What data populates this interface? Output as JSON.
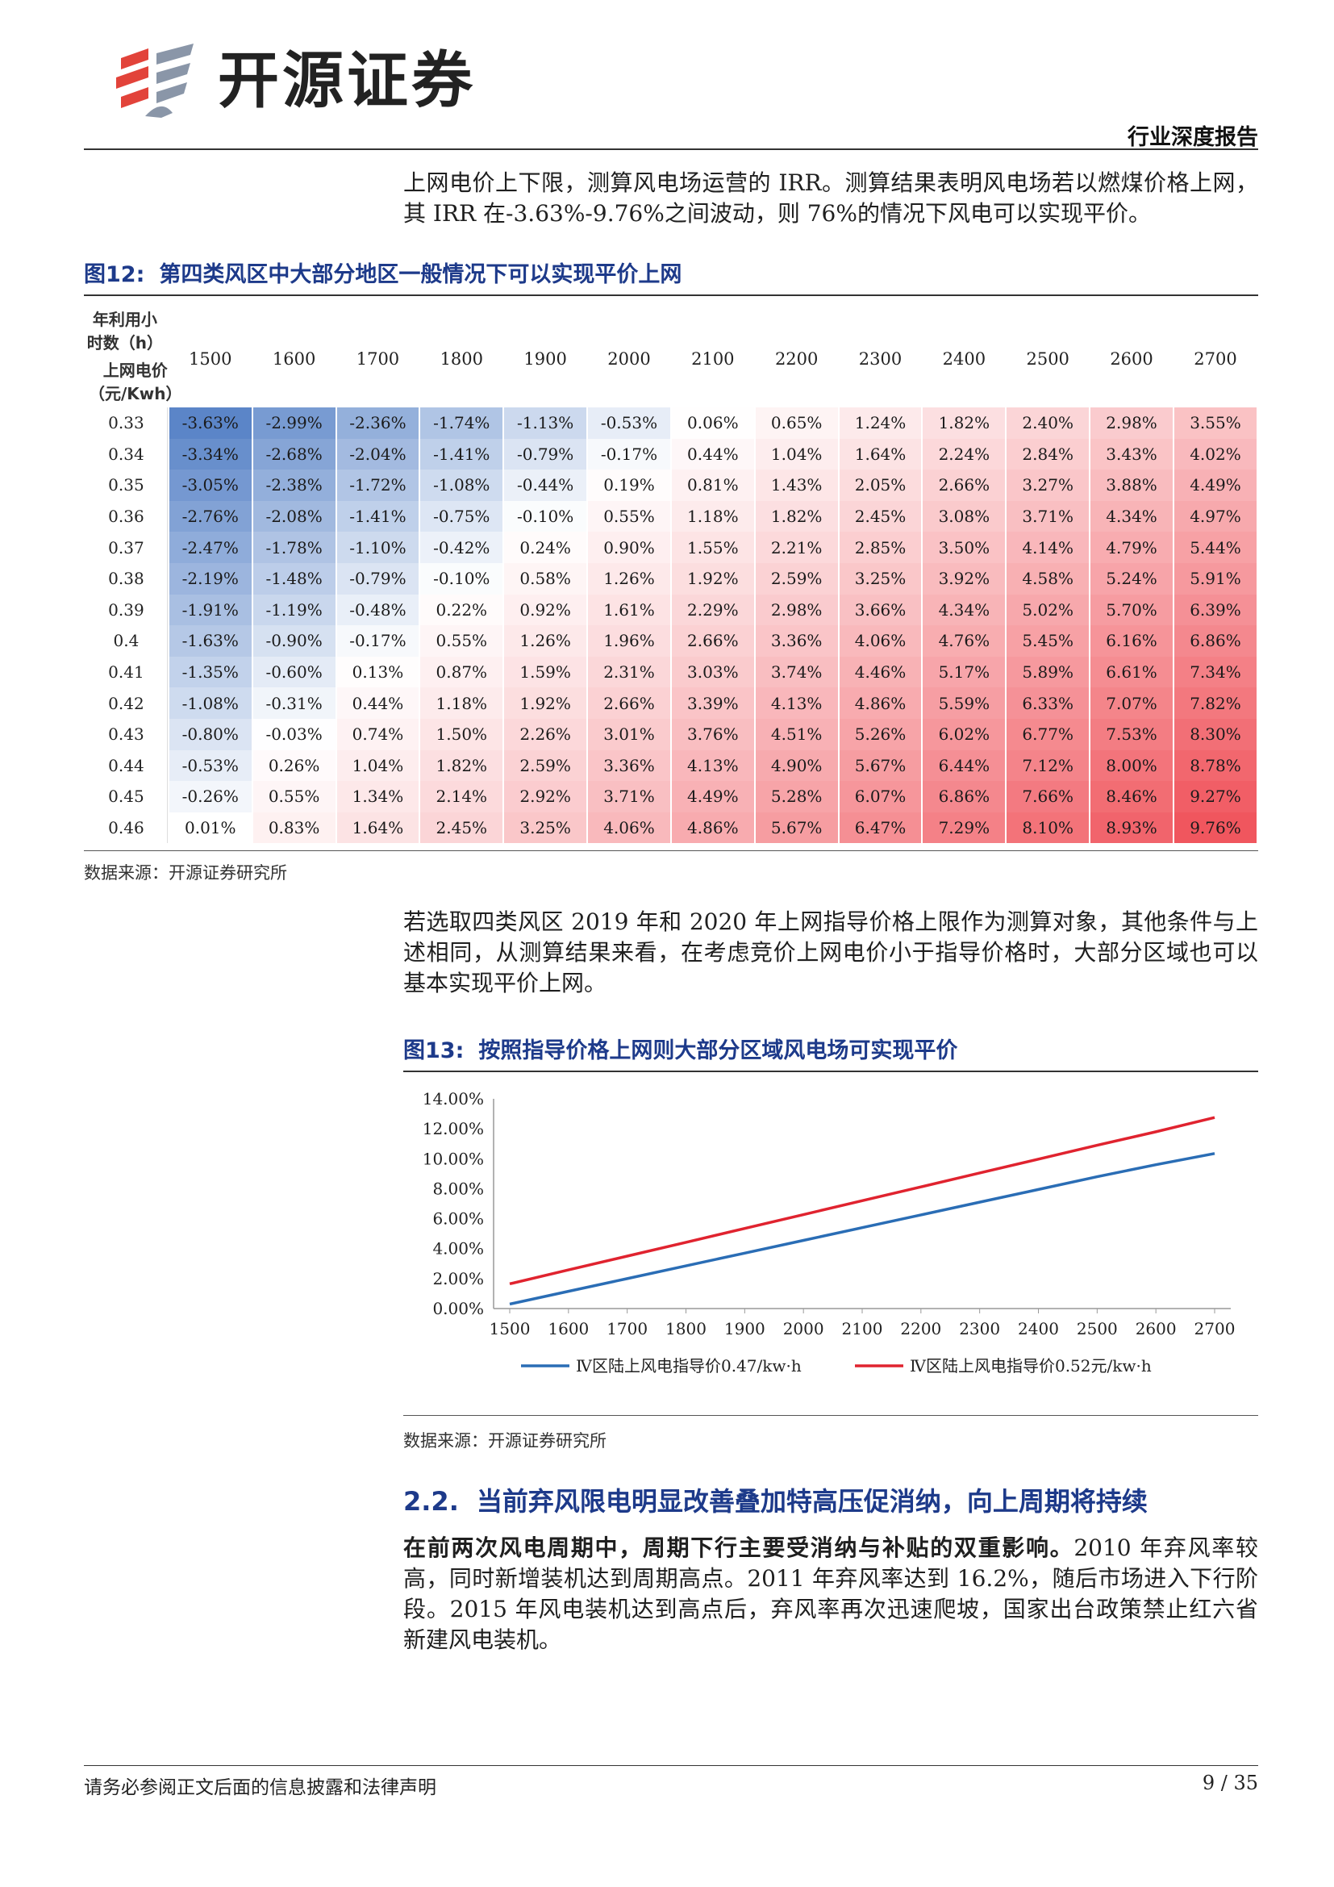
{
  "header": {
    "brand": "开源证券",
    "report_type": "行业深度报告"
  },
  "intro_para": "上网电价上下限，测算风电场运营的 IRR。测算结果表明风电场若以燃煤价格上网，其 IRR 在-3.63%-9.76%之间波动，则 76%的情况下风电可以实现平价。",
  "figure12": {
    "number": "图12:",
    "title": "第四类风区中大部分地区一般情况下可以实现平价上网",
    "corner_col_label": "年利用小时数（h）",
    "corner_row_label": "上网电价（元/Kwh）",
    "columns": [
      "1500",
      "1600",
      "1700",
      "1800",
      "1900",
      "2000",
      "2100",
      "2200",
      "2300",
      "2400",
      "2500",
      "2600",
      "2700"
    ],
    "rows": [
      {
        "price": "0.33",
        "values": [
          "-3.63%",
          "-2.99%",
          "-2.36%",
          "-1.74%",
          "-1.13%",
          "-0.53%",
          "0.06%",
          "0.65%",
          "1.24%",
          "1.82%",
          "2.40%",
          "2.98%",
          "3.55%"
        ]
      },
      {
        "price": "0.34",
        "values": [
          "-3.34%",
          "-2.68%",
          "-2.04%",
          "-1.41%",
          "-0.79%",
          "-0.17%",
          "0.44%",
          "1.04%",
          "1.64%",
          "2.24%",
          "2.84%",
          "3.43%",
          "4.02%"
        ]
      },
      {
        "price": "0.35",
        "values": [
          "-3.05%",
          "-2.38%",
          "-1.72%",
          "-1.08%",
          "-0.44%",
          "0.19%",
          "0.81%",
          "1.43%",
          "2.05%",
          "2.66%",
          "3.27%",
          "3.88%",
          "4.49%"
        ]
      },
      {
        "price": "0.36",
        "values": [
          "-2.76%",
          "-2.08%",
          "-1.41%",
          "-0.75%",
          "-0.10%",
          "0.55%",
          "1.18%",
          "1.82%",
          "2.45%",
          "3.08%",
          "3.71%",
          "4.34%",
          "4.97%"
        ]
      },
      {
        "price": "0.37",
        "values": [
          "-2.47%",
          "-1.78%",
          "-1.10%",
          "-0.42%",
          "0.24%",
          "0.90%",
          "1.55%",
          "2.21%",
          "2.85%",
          "3.50%",
          "4.14%",
          "4.79%",
          "5.44%"
        ]
      },
      {
        "price": "0.38",
        "values": [
          "-2.19%",
          "-1.48%",
          "-0.79%",
          "-0.10%",
          "0.58%",
          "1.26%",
          "1.92%",
          "2.59%",
          "3.25%",
          "3.92%",
          "4.58%",
          "5.24%",
          "5.91%"
        ]
      },
      {
        "price": "0.39",
        "values": [
          "-1.91%",
          "-1.19%",
          "-0.48%",
          "0.22%",
          "0.92%",
          "1.61%",
          "2.29%",
          "2.98%",
          "3.66%",
          "4.34%",
          "5.02%",
          "5.70%",
          "6.39%"
        ]
      },
      {
        "price": "0.4",
        "values": [
          "-1.63%",
          "-0.90%",
          "-0.17%",
          "0.55%",
          "1.26%",
          "1.96%",
          "2.66%",
          "3.36%",
          "4.06%",
          "4.76%",
          "5.45%",
          "6.16%",
          "6.86%"
        ]
      },
      {
        "price": "0.41",
        "values": [
          "-1.35%",
          "-0.60%",
          "0.13%",
          "0.87%",
          "1.59%",
          "2.31%",
          "3.03%",
          "3.74%",
          "4.46%",
          "5.17%",
          "5.89%",
          "6.61%",
          "7.34%"
        ]
      },
      {
        "price": "0.42",
        "values": [
          "-1.08%",
          "-0.31%",
          "0.44%",
          "1.18%",
          "1.92%",
          "2.66%",
          "3.39%",
          "4.13%",
          "4.86%",
          "5.59%",
          "6.33%",
          "7.07%",
          "7.82%"
        ]
      },
      {
        "price": "0.43",
        "values": [
          "-0.80%",
          "-0.03%",
          "0.74%",
          "1.50%",
          "2.26%",
          "3.01%",
          "3.76%",
          "4.51%",
          "5.26%",
          "6.02%",
          "6.77%",
          "7.53%",
          "8.30%"
        ]
      },
      {
        "price": "0.44",
        "values": [
          "-0.53%",
          "0.26%",
          "1.04%",
          "1.82%",
          "2.59%",
          "3.36%",
          "4.13%",
          "4.90%",
          "5.67%",
          "6.44%",
          "7.12%",
          "8.00%",
          "8.78%"
        ]
      },
      {
        "price": "0.45",
        "values": [
          "-0.26%",
          "0.55%",
          "1.34%",
          "2.14%",
          "2.92%",
          "3.71%",
          "4.49%",
          "5.28%",
          "6.07%",
          "6.86%",
          "7.66%",
          "8.46%",
          "9.27%"
        ]
      },
      {
        "price": "0.46",
        "values": [
          "0.01%",
          "0.83%",
          "1.64%",
          "2.45%",
          "3.25%",
          "4.06%",
          "4.86%",
          "5.67%",
          "6.47%",
          "7.29%",
          "8.10%",
          "8.93%",
          "9.76%"
        ]
      }
    ],
    "scale_colors": {
      "low": "#5b85c8",
      "mid": "#ffffff",
      "high": "#f0565e"
    },
    "source": "数据来源：开源证券研究所"
  },
  "middle_para": "若选取四类风区 2019 年和 2020 年上网指导价格上限作为测算对象，其他条件与上述相同，从测算结果来看，在考虑竞价上网电价小于指导价格时，大部分区域也可以基本实现平价上网。",
  "figure13": {
    "number": "图13:",
    "title": "按照指导价格上网则大部分区域风电场可实现平价",
    "source": "数据来源：开源证券研究所"
  },
  "chart_data": {
    "type": "line",
    "x": [
      1500,
      1600,
      1700,
      1800,
      1900,
      2000,
      2100,
      2200,
      2300,
      2400,
      2500,
      2600,
      2700
    ],
    "ylim": [
      0,
      14
    ],
    "y_ticks": [
      "0.00%",
      "2.00%",
      "4.00%",
      "6.00%",
      "8.00%",
      "10.00%",
      "12.00%",
      "14.00%"
    ],
    "series": [
      {
        "name": "Ⅳ区陆上风电指导价0.47/kw·h",
        "color": "#2a6db5",
        "values": [
          0.3,
          1.15,
          2.0,
          2.85,
          3.7,
          4.55,
          5.4,
          6.25,
          7.1,
          7.95,
          8.8,
          9.6,
          10.35
        ]
      },
      {
        "name": "Ⅳ区陆上风电指导价0.52元/kw·h",
        "color": "#e0232f",
        "values": [
          1.65,
          2.58,
          3.5,
          4.42,
          5.35,
          6.27,
          7.2,
          8.12,
          9.05,
          9.97,
          10.9,
          11.8,
          12.75
        ]
      }
    ],
    "legend": "bottom"
  },
  "section": {
    "number": "2.2.",
    "title": "当前弃风限电明显改善叠加特高压促消纳，向上周期将持续"
  },
  "final_para": {
    "bold": "在前两次风电周期中，周期下行主要受消纳与补贴的双重影响。",
    "rest": "2010 年弃风率较高，同时新增装机达到周期高点。2011 年弃风率达到 16.2%，随后市场进入下行阶段。2015 年风电装机达到高点后，弃风率再次迅速爬坡，国家出台政策禁止红六省新建风电装机。"
  },
  "footer": {
    "note": "请务必参阅正文后面的信息披露和法律声明",
    "page": "9 / 35"
  }
}
